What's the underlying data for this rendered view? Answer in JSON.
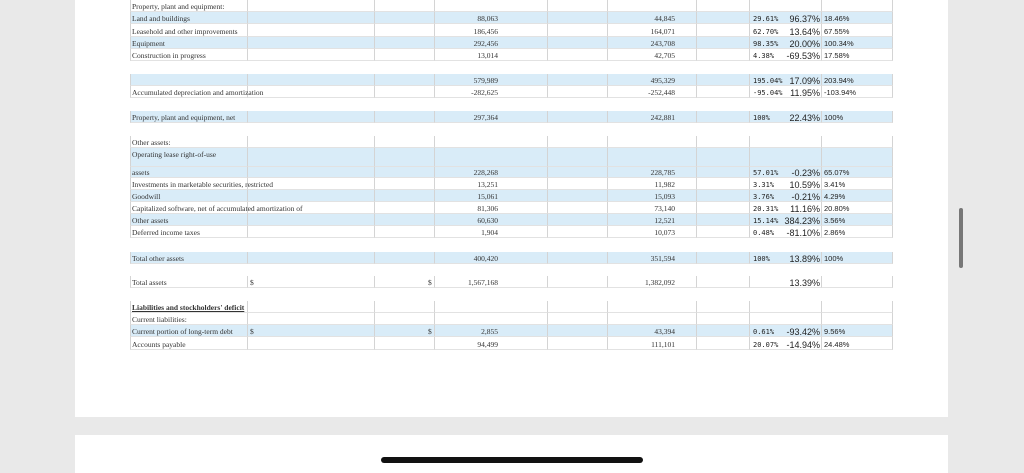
{
  "rows": [
    {
      "label": "Property, plant and equipment:"
    },
    {
      "label": "Land and buildings",
      "v1": "88,063",
      "v2": "44,845",
      "p1": "96.37%",
      "p2": "29.61%",
      "p3": "18.46%"
    },
    {
      "label": "Leasehold and other improvements",
      "v1": "186,456",
      "v2": "164,071",
      "p1": "13.64%",
      "p2": "62.70%",
      "p3": "67.55%"
    },
    {
      "label": "Equipment",
      "v1": "292,456",
      "v2": "243,708",
      "p1": "20.00%",
      "p2": "98.35%",
      "p3": "100.34%"
    },
    {
      "label": "Construction in progress",
      "v1": "13,014",
      "v2": "42,705",
      "p1": "-69.53%",
      "p2": "4.38%",
      "p3": "17.58%"
    },
    {
      "v1": "579,989",
      "v2": "495,329",
      "p1": "17.09%",
      "p2": "195.04%",
      "p3": "203.94%"
    },
    {
      "label": "Accumulated depreciation and amortization",
      "v1": "-282,625",
      "v2": "-252,448",
      "p1": "11.95%",
      "p2": "-95.04%",
      "p3": "-103.94%"
    },
    {
      "label": "Property, plant and equipment, net",
      "v1": "297,364",
      "v2": "242,881",
      "p1": "22.43%",
      "p2": "100%",
      "p3": "100%"
    },
    {
      "label": "Other assets:"
    },
    {
      "label": "Operating lease right-of-use"
    },
    {
      "label": "assets",
      "v1": "228,268",
      "v2": "228,785",
      "p1": "-0.23%",
      "p2": "57.01%",
      "p3": "65.07%"
    },
    {
      "label": "Investments in marketable securities, restricted",
      "v1": "13,251",
      "v2": "11,982",
      "p1": "10.59%",
      "p2": "3.31%",
      "p3": "3.41%"
    },
    {
      "label": "Goodwill",
      "v1": "15,061",
      "v2": "15,093",
      "p1": "-0.21%",
      "p2": "3.76%",
      "p3": "4.29%"
    },
    {
      "label": "Capitalized software, net of accumulated amortization of",
      "v1": "81,306",
      "v2": "73,140",
      "p1": "11.16%",
      "p2": "20.31%",
      "p3": "20.80%"
    },
    {
      "label": "Other assets",
      "v1": "60,630",
      "v2": "12,521",
      "p1": "384.23%",
      "p2": "15.14%",
      "p3": "3.56%"
    },
    {
      "label": "Deferred income taxes",
      "v1": "1,904",
      "v2": "10,073",
      "p1": "-81.10%",
      "p2": "0.48%",
      "p3": "2.86%"
    },
    {
      "label": "Total other assets",
      "v1": "400,420",
      "v2": "351,594",
      "p1": "13.89%",
      "p2": "100%",
      "p3": "100%"
    },
    {
      "label": "Total assets",
      "c1": "$",
      "v1": "1,567,168",
      "c2": "$",
      "v2": "1,382,092",
      "p1": "13.39%"
    },
    {
      "label": "Liabilities and stockholders' deficit"
    },
    {
      "label": "Current liabilities:"
    },
    {
      "label": "Current portion of long-term debt",
      "c1": "$",
      "v1": "2,855",
      "c2": "$",
      "v2": "43,394",
      "p1": "-93.42%",
      "p2": "0.61%",
      "p3": "9.56%"
    },
    {
      "label": "Accounts payable",
      "v1": "94,499",
      "v2": "111,101",
      "p1": "-14.94%",
      "p2": "20.07%",
      "p3": "24.48%"
    }
  ]
}
